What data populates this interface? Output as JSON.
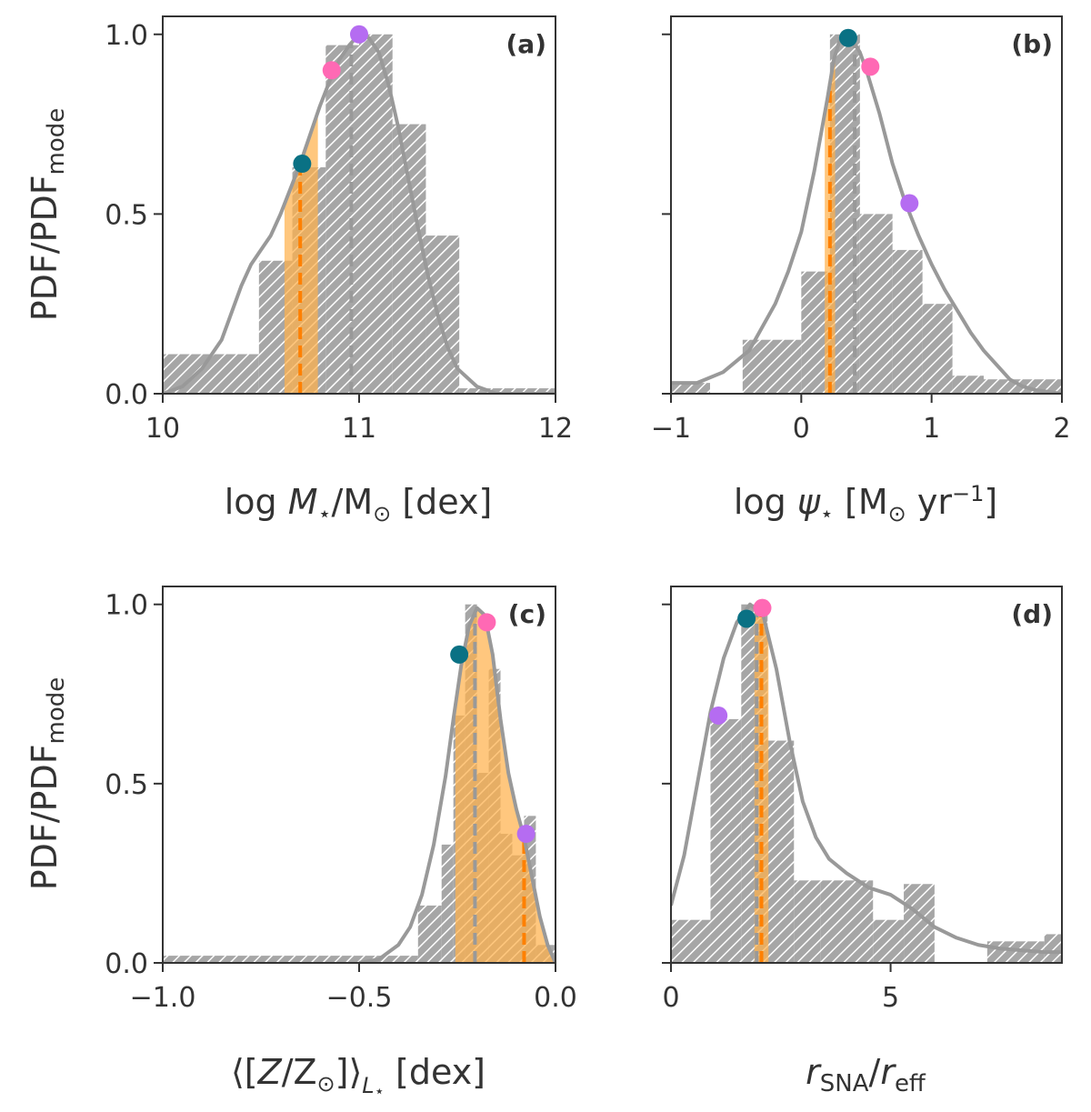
{
  "colors": {
    "hist": "#999999",
    "kde": "#999999",
    "band": "#ffb24c",
    "median": "#ff8000",
    "mode_line": "#999999",
    "teal": "#0a7184",
    "pink": "#ff69b4",
    "violet": "#b56cf1",
    "axis": "#333333"
  },
  "y_label": {
    "main": "PDF/PDF",
    "sub": "mode"
  },
  "chart_data": [
    {
      "id": "a",
      "type": "bar",
      "panel_label": "(a)",
      "xlabel": {
        "pre": "log ",
        "italic": "M",
        "sub": "⋆",
        "mid": "/M",
        "sun": "⊙",
        "post": " [dex]"
      },
      "xlim": [
        10,
        12
      ],
      "ylim": [
        0,
        1.05
      ],
      "xticks": [
        10,
        11,
        12
      ],
      "xtick_labels": [
        "10",
        "11",
        "12"
      ],
      "yticks": [
        0,
        0.5,
        1
      ],
      "ytick_labels": [
        "0.0",
        "0.5",
        "1.0"
      ],
      "hist": {
        "edges": [
          10.0,
          10.49,
          10.66,
          10.83,
          11.0,
          11.17,
          11.34,
          11.51,
          12.0
        ],
        "values": [
          0.11,
          0.37,
          0.63,
          0.97,
          1.0,
          0.75,
          0.44,
          0.015
        ]
      },
      "kde": {
        "x": [
          10.0,
          10.1,
          10.2,
          10.3,
          10.4,
          10.45,
          10.5,
          10.55,
          10.6,
          10.65,
          10.7,
          10.75,
          10.8,
          10.85,
          10.9,
          10.95,
          11.0,
          11.05,
          11.1,
          11.15,
          11.2,
          11.25,
          11.3,
          11.35,
          11.4,
          11.45,
          11.5,
          11.6,
          11.7,
          11.8,
          12.0
        ],
        "y": [
          0.0,
          0.02,
          0.07,
          0.15,
          0.3,
          0.36,
          0.4,
          0.44,
          0.5,
          0.57,
          0.64,
          0.72,
          0.8,
          0.87,
          0.93,
          0.97,
          1.0,
          0.99,
          0.95,
          0.86,
          0.74,
          0.6,
          0.46,
          0.33,
          0.22,
          0.13,
          0.07,
          0.02,
          0.0,
          0.0,
          0.0
        ]
      },
      "band": [
        10.62,
        10.79
      ],
      "median": 10.7,
      "mode_line": 10.96,
      "points": [
        {
          "x": 10.71,
          "y": 0.64,
          "color": "teal"
        },
        {
          "x": 10.86,
          "y": 0.9,
          "color": "pink"
        },
        {
          "x": 11.0,
          "y": 1.0,
          "color": "violet"
        }
      ]
    },
    {
      "id": "b",
      "type": "bar",
      "panel_label": "(b)",
      "xlabel": {
        "pre": "log ",
        "italic": "ψ",
        "sub": "⋆",
        "mid": " [M",
        "sun": "⊙",
        "post": " yr",
        "sup": "−1",
        "end": "]"
      },
      "xlim": [
        -1,
        2
      ],
      "ylim": [
        0,
        1.05
      ],
      "xticks": [
        -1,
        0,
        1,
        2
      ],
      "xtick_labels": [
        "−1",
        "0",
        "1",
        "2"
      ],
      "yticks": [
        0,
        0.5,
        1
      ],
      "ytick_labels": [
        "",
        "",
        ""
      ],
      "hist": {
        "edges": [
          -1.0,
          -0.7,
          -0.45,
          0.0,
          0.22,
          0.45,
          0.7,
          0.93,
          1.16,
          1.4,
          2.0
        ],
        "values": [
          0.03,
          0.0,
          0.15,
          0.34,
          1.0,
          0.5,
          0.4,
          0.25,
          0.05,
          0.04
        ]
      },
      "kde": {
        "x": [
          -1.0,
          -0.8,
          -0.6,
          -0.4,
          -0.2,
          -0.1,
          0.0,
          0.1,
          0.2,
          0.25,
          0.3,
          0.35,
          0.4,
          0.45,
          0.5,
          0.6,
          0.7,
          0.8,
          0.9,
          1.0,
          1.1,
          1.2,
          1.3,
          1.4,
          1.5,
          1.6,
          1.7,
          1.8,
          2.0
        ],
        "y": [
          0.03,
          0.03,
          0.06,
          0.12,
          0.25,
          0.34,
          0.45,
          0.62,
          0.82,
          0.93,
          0.99,
          1.0,
          0.98,
          0.95,
          0.9,
          0.78,
          0.64,
          0.53,
          0.44,
          0.36,
          0.29,
          0.23,
          0.17,
          0.12,
          0.08,
          0.04,
          0.02,
          0.01,
          0.0
        ]
      },
      "band": [
        0.18,
        0.26
      ],
      "median": 0.22,
      "mode_line": 0.41,
      "points": [
        {
          "x": 0.36,
          "y": 0.99,
          "color": "teal"
        },
        {
          "x": 0.53,
          "y": 0.91,
          "color": "pink"
        },
        {
          "x": 0.83,
          "y": 0.53,
          "color": "violet"
        }
      ]
    },
    {
      "id": "c",
      "type": "bar",
      "panel_label": "(c)",
      "xlabel": {
        "pre": "⟨[",
        "italic": "Z",
        "mid": "/Z",
        "sun": "⊙",
        "post2": "]⟩",
        "lsub": "L",
        "lsubsub": "⋆",
        "post": " [dex]"
      },
      "xlim": [
        -1.0,
        0.0
      ],
      "ylim": [
        0,
        1.05
      ],
      "xticks": [
        -1.0,
        -0.5,
        0.0
      ],
      "xtick_labels": [
        "−1.0",
        "−0.5",
        "0.0"
      ],
      "yticks": [
        0,
        0.5,
        1
      ],
      "ytick_labels": [
        "0.0",
        "0.5",
        "1.0"
      ],
      "hist": {
        "edges": [
          -1.0,
          -0.35,
          -0.29,
          -0.26,
          -0.23,
          -0.2,
          -0.17,
          -0.14,
          -0.11,
          -0.08,
          -0.05,
          0.0
        ],
        "values": [
          0.02,
          0.16,
          0.33,
          0.69,
          1.0,
          0.53,
          0.82,
          0.36,
          0.3,
          0.41,
          0.05
        ]
      },
      "kde": {
        "x": [
          -0.5,
          -0.45,
          -0.4,
          -0.37,
          -0.34,
          -0.31,
          -0.28,
          -0.26,
          -0.24,
          -0.22,
          -0.2,
          -0.18,
          -0.16,
          -0.14,
          -0.12,
          -0.1,
          -0.08,
          -0.06,
          -0.04,
          -0.02,
          0.0
        ],
        "y": [
          0.0,
          0.01,
          0.05,
          0.1,
          0.19,
          0.33,
          0.52,
          0.68,
          0.83,
          0.94,
          0.99,
          0.97,
          0.86,
          0.68,
          0.53,
          0.43,
          0.35,
          0.24,
          0.13,
          0.05,
          0.0
        ]
      },
      "band": [
        -0.255,
        -0.005
      ],
      "median": -0.08,
      "mode_line": -0.205,
      "points": [
        {
          "x": -0.245,
          "y": 0.86,
          "color": "teal"
        },
        {
          "x": -0.175,
          "y": 0.95,
          "color": "pink"
        },
        {
          "x": -0.075,
          "y": 0.36,
          "color": "violet"
        }
      ]
    },
    {
      "id": "d",
      "type": "bar",
      "panel_label": "(d)",
      "xlabel": {
        "italic": "r",
        "sub": "SNA",
        "mid": "/",
        "italic2": "r",
        "sub2": "eff"
      },
      "xlim": [
        0,
        8.9
      ],
      "ylim": [
        0,
        1.05
      ],
      "xticks": [
        0,
        5
      ],
      "xtick_labels": [
        "0",
        "5"
      ],
      "yticks": [
        0,
        0.5,
        1
      ],
      "ytick_labels": [
        "",
        "",
        ""
      ],
      "hist": {
        "edges": [
          0.0,
          0.9,
          1.6,
          2.2,
          2.8,
          3.4,
          4.6,
          5.3,
          6.0,
          7.2,
          8.5,
          8.9
        ],
        "values": [
          0.12,
          0.68,
          1.0,
          0.62,
          0.23,
          0.23,
          0.12,
          0.22,
          0.0,
          0.06,
          0.08
        ]
      },
      "kde": {
        "x": [
          0.0,
          0.3,
          0.6,
          0.9,
          1.2,
          1.5,
          1.8,
          2.1,
          2.4,
          2.7,
          3.0,
          3.3,
          3.6,
          4.0,
          4.5,
          5.0,
          5.5,
          6.0,
          6.5,
          7.0,
          7.5,
          8.0,
          8.5,
          8.9
        ],
        "y": [
          0.16,
          0.3,
          0.5,
          0.7,
          0.85,
          0.95,
          1.0,
          0.97,
          0.82,
          0.62,
          0.45,
          0.35,
          0.29,
          0.25,
          0.21,
          0.19,
          0.15,
          0.1,
          0.07,
          0.05,
          0.04,
          0.035,
          0.03,
          0.03
        ]
      },
      "band": [
        1.9,
        2.22
      ],
      "median": 2.06,
      "mode_line": 1.95,
      "points": [
        {
          "x": 1.72,
          "y": 0.96,
          "color": "teal"
        },
        {
          "x": 2.08,
          "y": 0.99,
          "color": "pink"
        },
        {
          "x": 1.08,
          "y": 0.69,
          "color": "violet"
        }
      ]
    }
  ]
}
